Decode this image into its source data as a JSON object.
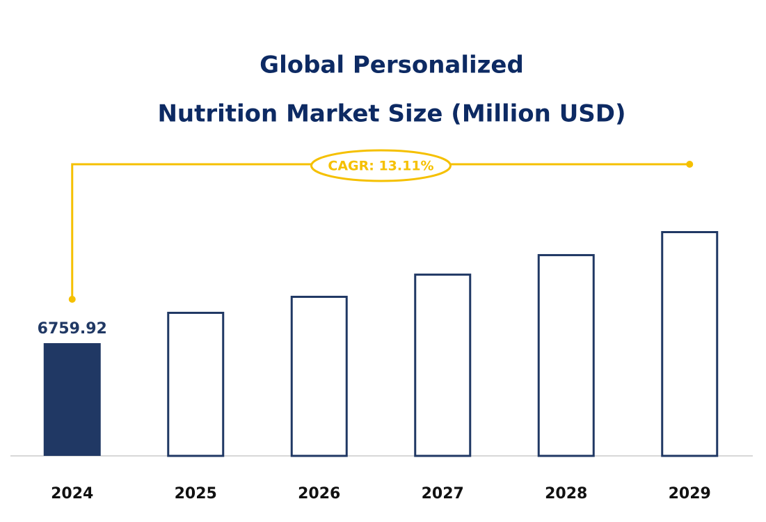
{
  "chart_data": {
    "type": "bar",
    "title": [
      "Global Personalized",
      "Nutrition Market Size (Million USD)"
    ],
    "annotation": "CAGR: 13.11%",
    "categories": [
      "2024",
      "2025",
      "2026",
      "2027",
      "2028",
      "2029"
    ],
    "values": [
      6759.92,
      8640,
      9600,
      10930,
      12100,
      13480
    ],
    "color": "#203864",
    "annotation_color": "#f5c000"
  }
}
